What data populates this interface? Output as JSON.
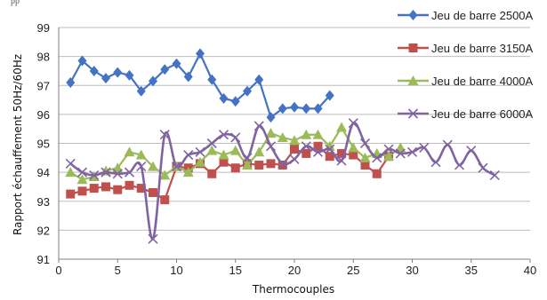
{
  "top_fragment": "pp",
  "chart_data": {
    "type": "line",
    "xlabel": "Thermocouples",
    "ylabel": "Rapport échauffement 50Hz/60Hz",
    "xlim": [
      0,
      40
    ],
    "ylim": [
      91,
      99
    ],
    "xticks": [
      0,
      5,
      10,
      15,
      20,
      25,
      30,
      35,
      40
    ],
    "yticks": [
      91,
      92,
      93,
      94,
      95,
      96,
      97,
      98,
      99
    ],
    "grid": "horizontal",
    "legend": "right",
    "series": [
      {
        "name": "Jeu de barre 2500A",
        "color": "#4472C4",
        "marker": "diamond",
        "smooth": false,
        "x": [
          1,
          2,
          3,
          4,
          5,
          6,
          7,
          8,
          9,
          10,
          11,
          12,
          13,
          14,
          15,
          16,
          17,
          18,
          19,
          20,
          21,
          22,
          23
        ],
        "y": [
          97.1,
          97.85,
          97.5,
          97.25,
          97.45,
          97.35,
          96.8,
          97.15,
          97.55,
          97.75,
          97.3,
          98.1,
          97.2,
          96.55,
          96.45,
          96.8,
          97.2,
          95.9,
          96.2,
          96.25,
          96.2,
          96.2,
          96.65
        ]
      },
      {
        "name": "Jeu de barre 3150A",
        "color": "#C0504D",
        "marker": "square",
        "smooth": false,
        "x": [
          1,
          2,
          3,
          4,
          5,
          6,
          7,
          8,
          9,
          10,
          11,
          12,
          13,
          14,
          15,
          16,
          17,
          18,
          19,
          20,
          21,
          22,
          23,
          24,
          25,
          26,
          27,
          28
        ],
        "y": [
          93.25,
          93.35,
          93.45,
          93.5,
          93.4,
          93.55,
          93.45,
          93.3,
          93.05,
          94.2,
          94.15,
          94.3,
          93.95,
          94.35,
          94.15,
          94.3,
          94.25,
          94.3,
          94.25,
          94.8,
          94.65,
          94.9,
          94.55,
          94.65,
          94.6,
          94.25,
          93.95,
          94.55
        ]
      },
      {
        "name": "Jeu de barre 4000A",
        "color": "#9BBB59",
        "marker": "triangle",
        "smooth": false,
        "x": [
          1,
          2,
          3,
          4,
          5,
          6,
          7,
          8,
          9,
          10,
          11,
          12,
          13,
          14,
          15,
          16,
          17,
          18,
          19,
          20,
          21,
          22,
          23,
          24,
          25,
          26,
          27,
          28,
          29
        ],
        "y": [
          94.0,
          93.75,
          93.85,
          94.05,
          94.15,
          94.7,
          94.6,
          94.2,
          93.9,
          94.2,
          94.0,
          94.35,
          94.75,
          94.6,
          94.75,
          94.25,
          94.7,
          95.35,
          95.2,
          95.1,
          95.3,
          95.3,
          94.9,
          95.55,
          94.85,
          94.5,
          94.65,
          94.55,
          94.85
        ]
      },
      {
        "name": "Jeu de barre 6000A",
        "color": "#8064A2",
        "marker": "x",
        "smooth": true,
        "x": [
          1,
          2,
          3,
          4,
          5,
          6,
          7,
          8,
          9,
          10,
          11,
          12,
          13,
          14,
          15,
          16,
          17,
          18,
          19,
          20,
          21,
          22,
          23,
          24,
          25,
          26,
          27,
          28,
          29,
          30,
          31,
          32,
          33,
          34,
          35,
          36,
          37
        ],
        "y": [
          94.3,
          94.0,
          93.9,
          94.0,
          93.95,
          94.0,
          94.2,
          91.7,
          95.3,
          94.2,
          94.6,
          94.7,
          95.0,
          95.3,
          95.2,
          94.5,
          95.6,
          94.9,
          94.3,
          94.45,
          94.9,
          94.7,
          94.8,
          94.4,
          95.7,
          95.0,
          94.5,
          94.8,
          94.65,
          94.7,
          94.85,
          94.35,
          94.95,
          94.25,
          94.75,
          94.15,
          93.9
        ]
      }
    ]
  }
}
